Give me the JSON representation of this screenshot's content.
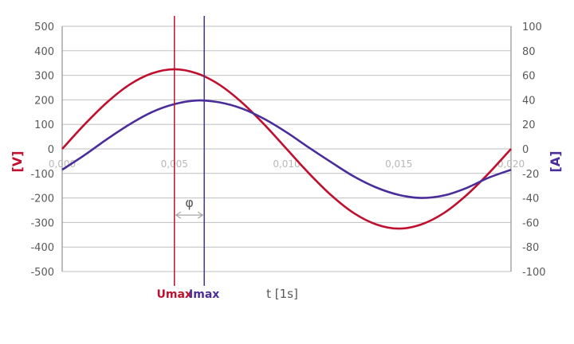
{
  "chart_data": {
    "type": "line",
    "xlabel": "t [1s]",
    "ylabel_left": "[V]",
    "ylabel_right": "[A]",
    "xlim": [
      0,
      0.02
    ],
    "ylim_left": [
      -500,
      500
    ],
    "ylim_right": [
      -100,
      100
    ],
    "x_ticks": [
      "0,000",
      "0,005",
      "0,010",
      "0,015",
      "0,020"
    ],
    "x_tick_values": [
      0,
      0.005,
      0.01,
      0.015,
      0.02
    ],
    "y_ticks_left": [
      "500",
      "400",
      "300",
      "200",
      "100",
      "0",
      "-100",
      "-200",
      "-300",
      "-400",
      "-500"
    ],
    "y_tick_values_left": [
      500,
      400,
      300,
      200,
      100,
      0,
      -100,
      -200,
      -300,
      -400,
      -500
    ],
    "y_ticks_right": [
      "100",
      "80",
      "60",
      "40",
      "20",
      "0",
      "-20",
      "-40",
      "-60",
      "-80",
      "-100"
    ],
    "y_tick_values_right": [
      100,
      80,
      60,
      40,
      20,
      0,
      -20,
      -40,
      -60,
      -80,
      -100
    ],
    "grid": true,
    "series": [
      {
        "name": "Umax",
        "axis": "left",
        "color": "#c0102f",
        "x": [
          0,
          0.001,
          0.002,
          0.003,
          0.004,
          0.005,
          0.006,
          0.007,
          0.008,
          0.009,
          0.01,
          0.011,
          0.012,
          0.013,
          0.014,
          0.015,
          0.016,
          0.017,
          0.018,
          0.019,
          0.02
        ],
        "values": [
          0,
          100,
          190,
          262,
          308,
          325,
          308,
          262,
          190,
          100,
          0,
          -100,
          -190,
          -262,
          -308,
          -325,
          -308,
          -262,
          -190,
          -100,
          0
        ]
      },
      {
        "name": "Imax",
        "axis": "right",
        "color": "#4a2d9b",
        "x": [
          0,
          0.001,
          0.002,
          0.003,
          0.004,
          0.005,
          0.006,
          0.007,
          0.008,
          0.009,
          0.01,
          0.011,
          0.012,
          0.013,
          0.014,
          0.015,
          0.016,
          0.017,
          0.018,
          0.019,
          0.02
        ],
        "values": [
          -17,
          -5,
          8,
          20,
          30,
          36.5,
          39.5,
          38,
          33,
          24.5,
          13.5,
          1,
          -11,
          -22.5,
          -31.5,
          -37.5,
          -40,
          -38,
          -32,
          -23.5,
          -17
        ]
      }
    ],
    "annotations": [
      {
        "label": "Umax",
        "x": 0.005,
        "color": "#c0102f"
      },
      {
        "label": "Imax",
        "x": 0.00633,
        "color": "#4a2d9b"
      },
      {
        "label": "φ",
        "x_from": 0.005,
        "x_to": 0.00633,
        "y_left": -270
      }
    ]
  }
}
